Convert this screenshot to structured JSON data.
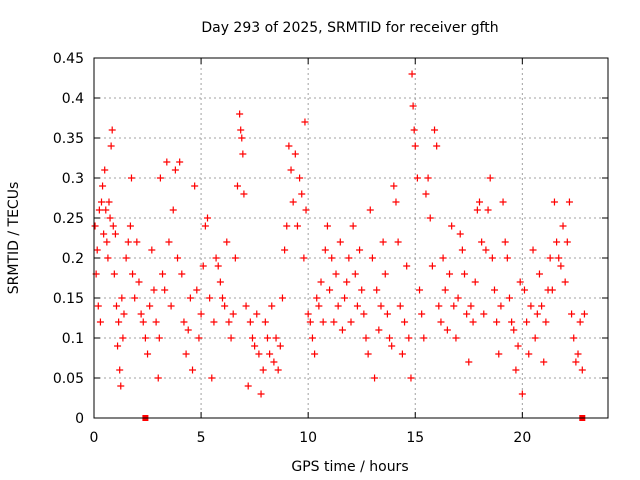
{
  "chart_data": {
    "type": "scatter",
    "title": "Day 293 of 2025, SRMTID for receiver gfth",
    "xlabel": "GPS time / hours",
    "ylabel": "SRMTID / TECUs",
    "xlim": [
      0,
      24
    ],
    "ylim": [
      0,
      0.45
    ],
    "x_ticks": [
      0,
      5,
      10,
      15,
      20
    ],
    "x_tick_labels": [
      "0",
      "5",
      "10",
      "15",
      "20"
    ],
    "y_ticks": [
      0,
      0.05,
      0.1,
      0.15,
      0.2,
      0.25,
      0.3,
      0.35,
      0.4,
      0.45
    ],
    "y_tick_labels": [
      "0",
      "0.05",
      "0.1",
      "0.15",
      "0.2",
      "0.25",
      "0.3",
      "0.35",
      "0.4",
      "0.45"
    ],
    "grid": true,
    "series": [
      {
        "name": "SRMTID",
        "color": "#ff0000",
        "marker": "plus",
        "points": [
          [
            0.05,
            0.24
          ],
          [
            0.1,
            0.18
          ],
          [
            0.15,
            0.21
          ],
          [
            0.2,
            0.14
          ],
          [
            0.25,
            0.26
          ],
          [
            0.3,
            0.12
          ],
          [
            0.35,
            0.27
          ],
          [
            0.4,
            0.29
          ],
          [
            0.45,
            0.23
          ],
          [
            0.5,
            0.31
          ],
          [
            0.55,
            0.26
          ],
          [
            0.6,
            0.22
          ],
          [
            0.65,
            0.2
          ],
          [
            0.7,
            0.27
          ],
          [
            0.75,
            0.25
          ],
          [
            0.8,
            0.34
          ],
          [
            0.85,
            0.36
          ],
          [
            0.9,
            0.24
          ],
          [
            0.95,
            0.18
          ],
          [
            1.0,
            0.23
          ],
          [
            1.05,
            0.14
          ],
          [
            1.1,
            0.09
          ],
          [
            1.15,
            0.12
          ],
          [
            1.2,
            0.06
          ],
          [
            1.25,
            0.04
          ],
          [
            1.3,
            0.15
          ],
          [
            1.35,
            0.1
          ],
          [
            1.4,
            0.13
          ],
          [
            1.5,
            0.2
          ],
          [
            1.6,
            0.22
          ],
          [
            1.7,
            0.24
          ],
          [
            1.75,
            0.3
          ],
          [
            1.8,
            0.18
          ],
          [
            1.9,
            0.15
          ],
          [
            2.0,
            0.22
          ],
          [
            2.1,
            0.17
          ],
          [
            2.2,
            0.13
          ],
          [
            2.3,
            0.12
          ],
          [
            2.4,
            0.1
          ],
          [
            2.5,
            0.08
          ],
          [
            2.6,
            0.14
          ],
          [
            2.7,
            0.21
          ],
          [
            2.8,
            0.16
          ],
          [
            2.9,
            0.12
          ],
          [
            3.0,
            0.05
          ],
          [
            3.05,
            0.1
          ],
          [
            3.1,
            0.3
          ],
          [
            3.2,
            0.18
          ],
          [
            3.3,
            0.16
          ],
          [
            3.4,
            0.32
          ],
          [
            3.5,
            0.22
          ],
          [
            3.6,
            0.14
          ],
          [
            3.7,
            0.26
          ],
          [
            3.8,
            0.31
          ],
          [
            3.9,
            0.2
          ],
          [
            4.0,
            0.32
          ],
          [
            4.1,
            0.18
          ],
          [
            4.2,
            0.12
          ],
          [
            4.3,
            0.08
          ],
          [
            4.4,
            0.11
          ],
          [
            4.5,
            0.15
          ],
          [
            4.6,
            0.06
          ],
          [
            4.7,
            0.29
          ],
          [
            4.8,
            0.16
          ],
          [
            4.9,
            0.1
          ],
          [
            5.0,
            0.13
          ],
          [
            5.1,
            0.19
          ],
          [
            5.2,
            0.24
          ],
          [
            5.3,
            0.25
          ],
          [
            5.4,
            0.15
          ],
          [
            5.5,
            0.05
          ],
          [
            5.6,
            0.12
          ],
          [
            5.7,
            0.2
          ],
          [
            5.8,
            0.19
          ],
          [
            5.9,
            0.17
          ],
          [
            6.0,
            0.15
          ],
          [
            6.1,
            0.14
          ],
          [
            6.2,
            0.22
          ],
          [
            6.3,
            0.12
          ],
          [
            6.4,
            0.1
          ],
          [
            6.5,
            0.13
          ],
          [
            6.6,
            0.2
          ],
          [
            6.7,
            0.29
          ],
          [
            6.8,
            0.38
          ],
          [
            6.85,
            0.36
          ],
          [
            6.9,
            0.35
          ],
          [
            6.95,
            0.33
          ],
          [
            7.0,
            0.28
          ],
          [
            7.1,
            0.14
          ],
          [
            7.2,
            0.04
          ],
          [
            7.3,
            0.12
          ],
          [
            7.4,
            0.1
          ],
          [
            7.5,
            0.09
          ],
          [
            7.6,
            0.13
          ],
          [
            7.7,
            0.08
          ],
          [
            7.8,
            0.03
          ],
          [
            7.9,
            0.06
          ],
          [
            8.0,
            0.12
          ],
          [
            8.1,
            0.1
          ],
          [
            8.2,
            0.08
          ],
          [
            8.3,
            0.14
          ],
          [
            8.4,
            0.07
          ],
          [
            8.5,
            0.1
          ],
          [
            8.6,
            0.06
          ],
          [
            8.7,
            0.09
          ],
          [
            8.8,
            0.15
          ],
          [
            8.9,
            0.21
          ],
          [
            9.0,
            0.24
          ],
          [
            9.1,
            0.34
          ],
          [
            9.2,
            0.31
          ],
          [
            9.3,
            0.27
          ],
          [
            9.4,
            0.33
          ],
          [
            9.5,
            0.24
          ],
          [
            9.6,
            0.3
          ],
          [
            9.7,
            0.28
          ],
          [
            9.8,
            0.2
          ],
          [
            9.85,
            0.37
          ],
          [
            9.9,
            0.26
          ],
          [
            10.0,
            0.13
          ],
          [
            10.1,
            0.12
          ],
          [
            10.2,
            0.1
          ],
          [
            10.3,
            0.08
          ],
          [
            10.4,
            0.15
          ],
          [
            10.5,
            0.14
          ],
          [
            10.6,
            0.17
          ],
          [
            10.7,
            0.12
          ],
          [
            10.8,
            0.21
          ],
          [
            10.9,
            0.24
          ],
          [
            11.0,
            0.16
          ],
          [
            11.1,
            0.2
          ],
          [
            11.2,
            0.12
          ],
          [
            11.3,
            0.18
          ],
          [
            11.4,
            0.14
          ],
          [
            11.5,
            0.22
          ],
          [
            11.6,
            0.11
          ],
          [
            11.7,
            0.15
          ],
          [
            11.8,
            0.17
          ],
          [
            11.9,
            0.2
          ],
          [
            12.0,
            0.12
          ],
          [
            12.1,
            0.24
          ],
          [
            12.2,
            0.18
          ],
          [
            12.3,
            0.14
          ],
          [
            12.4,
            0.21
          ],
          [
            12.5,
            0.16
          ],
          [
            12.6,
            0.13
          ],
          [
            12.7,
            0.1
          ],
          [
            12.8,
            0.08
          ],
          [
            12.9,
            0.26
          ],
          [
            13.0,
            0.2
          ],
          [
            13.1,
            0.05
          ],
          [
            13.2,
            0.16
          ],
          [
            13.3,
            0.11
          ],
          [
            13.4,
            0.14
          ],
          [
            13.5,
            0.22
          ],
          [
            13.6,
            0.18
          ],
          [
            13.7,
            0.13
          ],
          [
            13.8,
            0.1
          ],
          [
            13.9,
            0.09
          ],
          [
            14.0,
            0.29
          ],
          [
            14.1,
            0.27
          ],
          [
            14.2,
            0.22
          ],
          [
            14.3,
            0.14
          ],
          [
            14.4,
            0.08
          ],
          [
            14.5,
            0.12
          ],
          [
            14.6,
            0.19
          ],
          [
            14.7,
            0.1
          ],
          [
            14.8,
            0.05
          ],
          [
            14.85,
            0.43
          ],
          [
            14.9,
            0.39
          ],
          [
            14.95,
            0.36
          ],
          [
            15.0,
            0.34
          ],
          [
            15.1,
            0.3
          ],
          [
            15.2,
            0.16
          ],
          [
            15.3,
            0.13
          ],
          [
            15.4,
            0.1
          ],
          [
            15.5,
            0.28
          ],
          [
            15.6,
            0.3
          ],
          [
            15.7,
            0.25
          ],
          [
            15.8,
            0.19
          ],
          [
            15.9,
            0.36
          ],
          [
            16.0,
            0.34
          ],
          [
            16.1,
            0.14
          ],
          [
            16.2,
            0.12
          ],
          [
            16.3,
            0.2
          ],
          [
            16.4,
            0.16
          ],
          [
            16.5,
            0.11
          ],
          [
            16.6,
            0.18
          ],
          [
            16.7,
            0.24
          ],
          [
            16.8,
            0.14
          ],
          [
            16.9,
            0.1
          ],
          [
            17.0,
            0.15
          ],
          [
            17.1,
            0.23
          ],
          [
            17.2,
            0.21
          ],
          [
            17.3,
            0.18
          ],
          [
            17.4,
            0.13
          ],
          [
            17.5,
            0.07
          ],
          [
            17.6,
            0.14
          ],
          [
            17.7,
            0.12
          ],
          [
            17.8,
            0.17
          ],
          [
            17.9,
            0.26
          ],
          [
            18.0,
            0.27
          ],
          [
            18.1,
            0.22
          ],
          [
            18.2,
            0.13
          ],
          [
            18.3,
            0.21
          ],
          [
            18.4,
            0.26
          ],
          [
            18.5,
            0.3
          ],
          [
            18.6,
            0.2
          ],
          [
            18.7,
            0.16
          ],
          [
            18.8,
            0.12
          ],
          [
            18.9,
            0.08
          ],
          [
            19.0,
            0.14
          ],
          [
            19.1,
            0.27
          ],
          [
            19.2,
            0.22
          ],
          [
            19.3,
            0.2
          ],
          [
            19.4,
            0.15
          ],
          [
            19.5,
            0.12
          ],
          [
            19.6,
            0.11
          ],
          [
            19.7,
            0.06
          ],
          [
            19.8,
            0.09
          ],
          [
            19.9,
            0.17
          ],
          [
            20.0,
            0.03
          ],
          [
            20.1,
            0.16
          ],
          [
            20.2,
            0.12
          ],
          [
            20.3,
            0.08
          ],
          [
            20.4,
            0.14
          ],
          [
            20.5,
            0.21
          ],
          [
            20.6,
            0.1
          ],
          [
            20.7,
            0.13
          ],
          [
            20.8,
            0.18
          ],
          [
            20.9,
            0.14
          ],
          [
            21.0,
            0.07
          ],
          [
            21.1,
            0.12
          ],
          [
            21.2,
            0.16
          ],
          [
            21.3,
            0.2
          ],
          [
            21.4,
            0.16
          ],
          [
            21.5,
            0.27
          ],
          [
            21.6,
            0.22
          ],
          [
            21.7,
            0.2
          ],
          [
            21.8,
            0.19
          ],
          [
            21.9,
            0.24
          ],
          [
            22.0,
            0.17
          ],
          [
            22.1,
            0.22
          ],
          [
            22.2,
            0.27
          ],
          [
            22.3,
            0.13
          ],
          [
            22.4,
            0.1
          ],
          [
            22.5,
            0.07
          ],
          [
            22.6,
            0.08
          ],
          [
            22.7,
            0.12
          ],
          [
            22.8,
            0.06
          ],
          [
            22.9,
            0.13
          ]
        ]
      },
      {
        "name": "zero-markers",
        "color": "#ff0000",
        "marker": "square",
        "points": [
          [
            2.4,
            0
          ],
          [
            22.8,
            0
          ]
        ]
      }
    ]
  }
}
